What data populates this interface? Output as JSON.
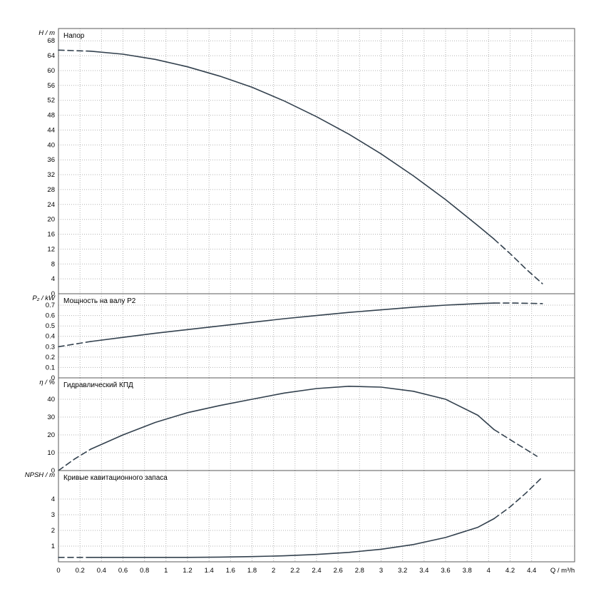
{
  "colors": {
    "curve": "#33414e",
    "grid": "#b3b3b3",
    "frame": "#5a5a5a",
    "text": "#000000",
    "background": "#ffffff"
  },
  "x_axis": {
    "label": "Q / m³/h",
    "xlim": [
      0,
      4.8
    ],
    "tick_values": [
      0,
      0.2,
      0.4,
      0.6,
      0.8,
      1,
      1.2,
      1.4,
      1.6,
      1.8,
      2,
      2.2,
      2.4,
      2.6,
      2.8,
      3,
      3.2,
      3.4,
      3.6,
      3.8,
      4,
      4.2,
      4.4
    ],
    "tick_labels": [
      "0",
      "0.2",
      "0.4",
      "0.6",
      "0.8",
      "1",
      "1.2",
      "1.4",
      "1.6",
      "1.8",
      "2",
      "2.2",
      "2.4",
      "2.6",
      "2.8",
      "3",
      "3.2",
      "3.4",
      "3.6",
      "3.8",
      "4",
      "4.2",
      "4.4"
    ]
  },
  "chart_data": [
    {
      "type": "line",
      "title": "Напор",
      "ylabel": "H / m",
      "ylim": [
        0,
        71.3
      ],
      "ytick_values": [
        0,
        4,
        8,
        12,
        16,
        20,
        24,
        28,
        32,
        36,
        40,
        44,
        48,
        52,
        56,
        60,
        64,
        68
      ],
      "ytick_labels": [
        "0",
        "4",
        "8",
        "12",
        "16",
        "20",
        "24",
        "28",
        "32",
        "36",
        "40",
        "44",
        "48",
        "52",
        "56",
        "60",
        "64",
        "68"
      ],
      "series": [
        {
          "name": "head-dashed-start",
          "style": "dashed",
          "points": [
            [
              0,
              65.5
            ],
            [
              0.3,
              65.2
            ]
          ]
        },
        {
          "name": "head-solid",
          "style": "solid",
          "points": [
            [
              0.3,
              65.2
            ],
            [
              0.6,
              64.4
            ],
            [
              0.9,
              63.0
            ],
            [
              1.2,
              61.0
            ],
            [
              1.5,
              58.5
            ],
            [
              1.8,
              55.5
            ],
            [
              2.1,
              51.8
            ],
            [
              2.4,
              47.6
            ],
            [
              2.7,
              42.9
            ],
            [
              3.0,
              37.6
            ],
            [
              3.3,
              31.7
            ],
            [
              3.6,
              25.3
            ],
            [
              3.9,
              18.3
            ],
            [
              4.05,
              14.7
            ]
          ]
        },
        {
          "name": "head-dashed-end",
          "style": "dashed",
          "points": [
            [
              4.05,
              14.7
            ],
            [
              4.2,
              10.8
            ],
            [
              4.35,
              6.6
            ],
            [
              4.5,
              2.7
            ]
          ]
        }
      ]
    },
    {
      "type": "line",
      "title": "Мощность на валу P2",
      "ylabel": "P₂ / kW",
      "ylim": [
        0,
        0.81
      ],
      "ytick_values": [
        0,
        0.1,
        0.2,
        0.3,
        0.4,
        0.5,
        0.6,
        0.7
      ],
      "ytick_labels": [
        "0",
        "0.1",
        "0.2",
        "0.3",
        "0.4",
        "0.5",
        "0.6",
        "0.7"
      ],
      "series": [
        {
          "name": "p2-dashed-start",
          "style": "dashed",
          "points": [
            [
              0,
              0.3
            ],
            [
              0.3,
              0.35
            ]
          ]
        },
        {
          "name": "p2-solid",
          "style": "solid",
          "points": [
            [
              0.3,
              0.35
            ],
            [
              0.6,
              0.39
            ],
            [
              0.9,
              0.43
            ],
            [
              1.2,
              0.465
            ],
            [
              1.5,
              0.5
            ],
            [
              1.8,
              0.535
            ],
            [
              2.1,
              0.57
            ],
            [
              2.4,
              0.6
            ],
            [
              2.7,
              0.63
            ],
            [
              3.0,
              0.655
            ],
            [
              3.3,
              0.68
            ],
            [
              3.6,
              0.7
            ],
            [
              3.9,
              0.715
            ],
            [
              4.05,
              0.72
            ]
          ]
        },
        {
          "name": "p2-dashed-end",
          "style": "dashed",
          "points": [
            [
              4.05,
              0.72
            ],
            [
              4.25,
              0.72
            ],
            [
              4.5,
              0.715
            ]
          ]
        }
      ]
    },
    {
      "type": "line",
      "title": "Гидравлический КПД",
      "ylabel": "η / %",
      "ylim": [
        0,
        52
      ],
      "ytick_values": [
        0,
        10,
        20,
        30,
        40
      ],
      "ytick_labels": [
        "0",
        "10",
        "20",
        "30",
        "40"
      ],
      "series": [
        {
          "name": "eta-dashed-start",
          "style": "dashed",
          "points": [
            [
              0,
              0
            ],
            [
              0.15,
              6.5
            ],
            [
              0.3,
              12
            ]
          ]
        },
        {
          "name": "eta-solid",
          "style": "solid",
          "points": [
            [
              0.3,
              12
            ],
            [
              0.6,
              20
            ],
            [
              0.9,
              27
            ],
            [
              1.2,
              32.5
            ],
            [
              1.5,
              36.5
            ],
            [
              1.8,
              40
            ],
            [
              2.1,
              43.5
            ],
            [
              2.4,
              46
            ],
            [
              2.7,
              47.3
            ],
            [
              3.0,
              46.8
            ],
            [
              3.3,
              44.5
            ],
            [
              3.6,
              40
            ],
            [
              3.9,
              31
            ],
            [
              4.05,
              23
            ]
          ]
        },
        {
          "name": "eta-dashed-end",
          "style": "dashed",
          "points": [
            [
              4.05,
              23
            ],
            [
              4.25,
              15.5
            ],
            [
              4.45,
              8
            ]
          ]
        }
      ]
    },
    {
      "type": "line",
      "title": "Кривые кавитационного запаса",
      "ylabel": "NPSH / m",
      "ylim": [
        0,
        5.82
      ],
      "ytick_values": [
        1,
        2,
        3,
        4
      ],
      "ytick_labels": [
        "1",
        "2",
        "3",
        "4"
      ],
      "series": [
        {
          "name": "npsh-dashed-start",
          "style": "dashed",
          "points": [
            [
              0,
              0.28
            ],
            [
              0.3,
              0.28
            ]
          ]
        },
        {
          "name": "npsh-solid",
          "style": "solid",
          "points": [
            [
              0.3,
              0.28
            ],
            [
              0.6,
              0.28
            ],
            [
              0.9,
              0.28
            ],
            [
              1.2,
              0.28
            ],
            [
              1.5,
              0.3
            ],
            [
              1.8,
              0.33
            ],
            [
              2.1,
              0.38
            ],
            [
              2.4,
              0.47
            ],
            [
              2.7,
              0.6
            ],
            [
              3.0,
              0.8
            ],
            [
              3.3,
              1.1
            ],
            [
              3.6,
              1.55
            ],
            [
              3.9,
              2.2
            ],
            [
              4.05,
              2.75
            ]
          ]
        },
        {
          "name": "npsh-dashed-end",
          "style": "dashed",
          "points": [
            [
              4.05,
              2.75
            ],
            [
              4.2,
              3.5
            ],
            [
              4.35,
              4.4
            ],
            [
              4.5,
              5.4
            ]
          ]
        }
      ]
    }
  ]
}
